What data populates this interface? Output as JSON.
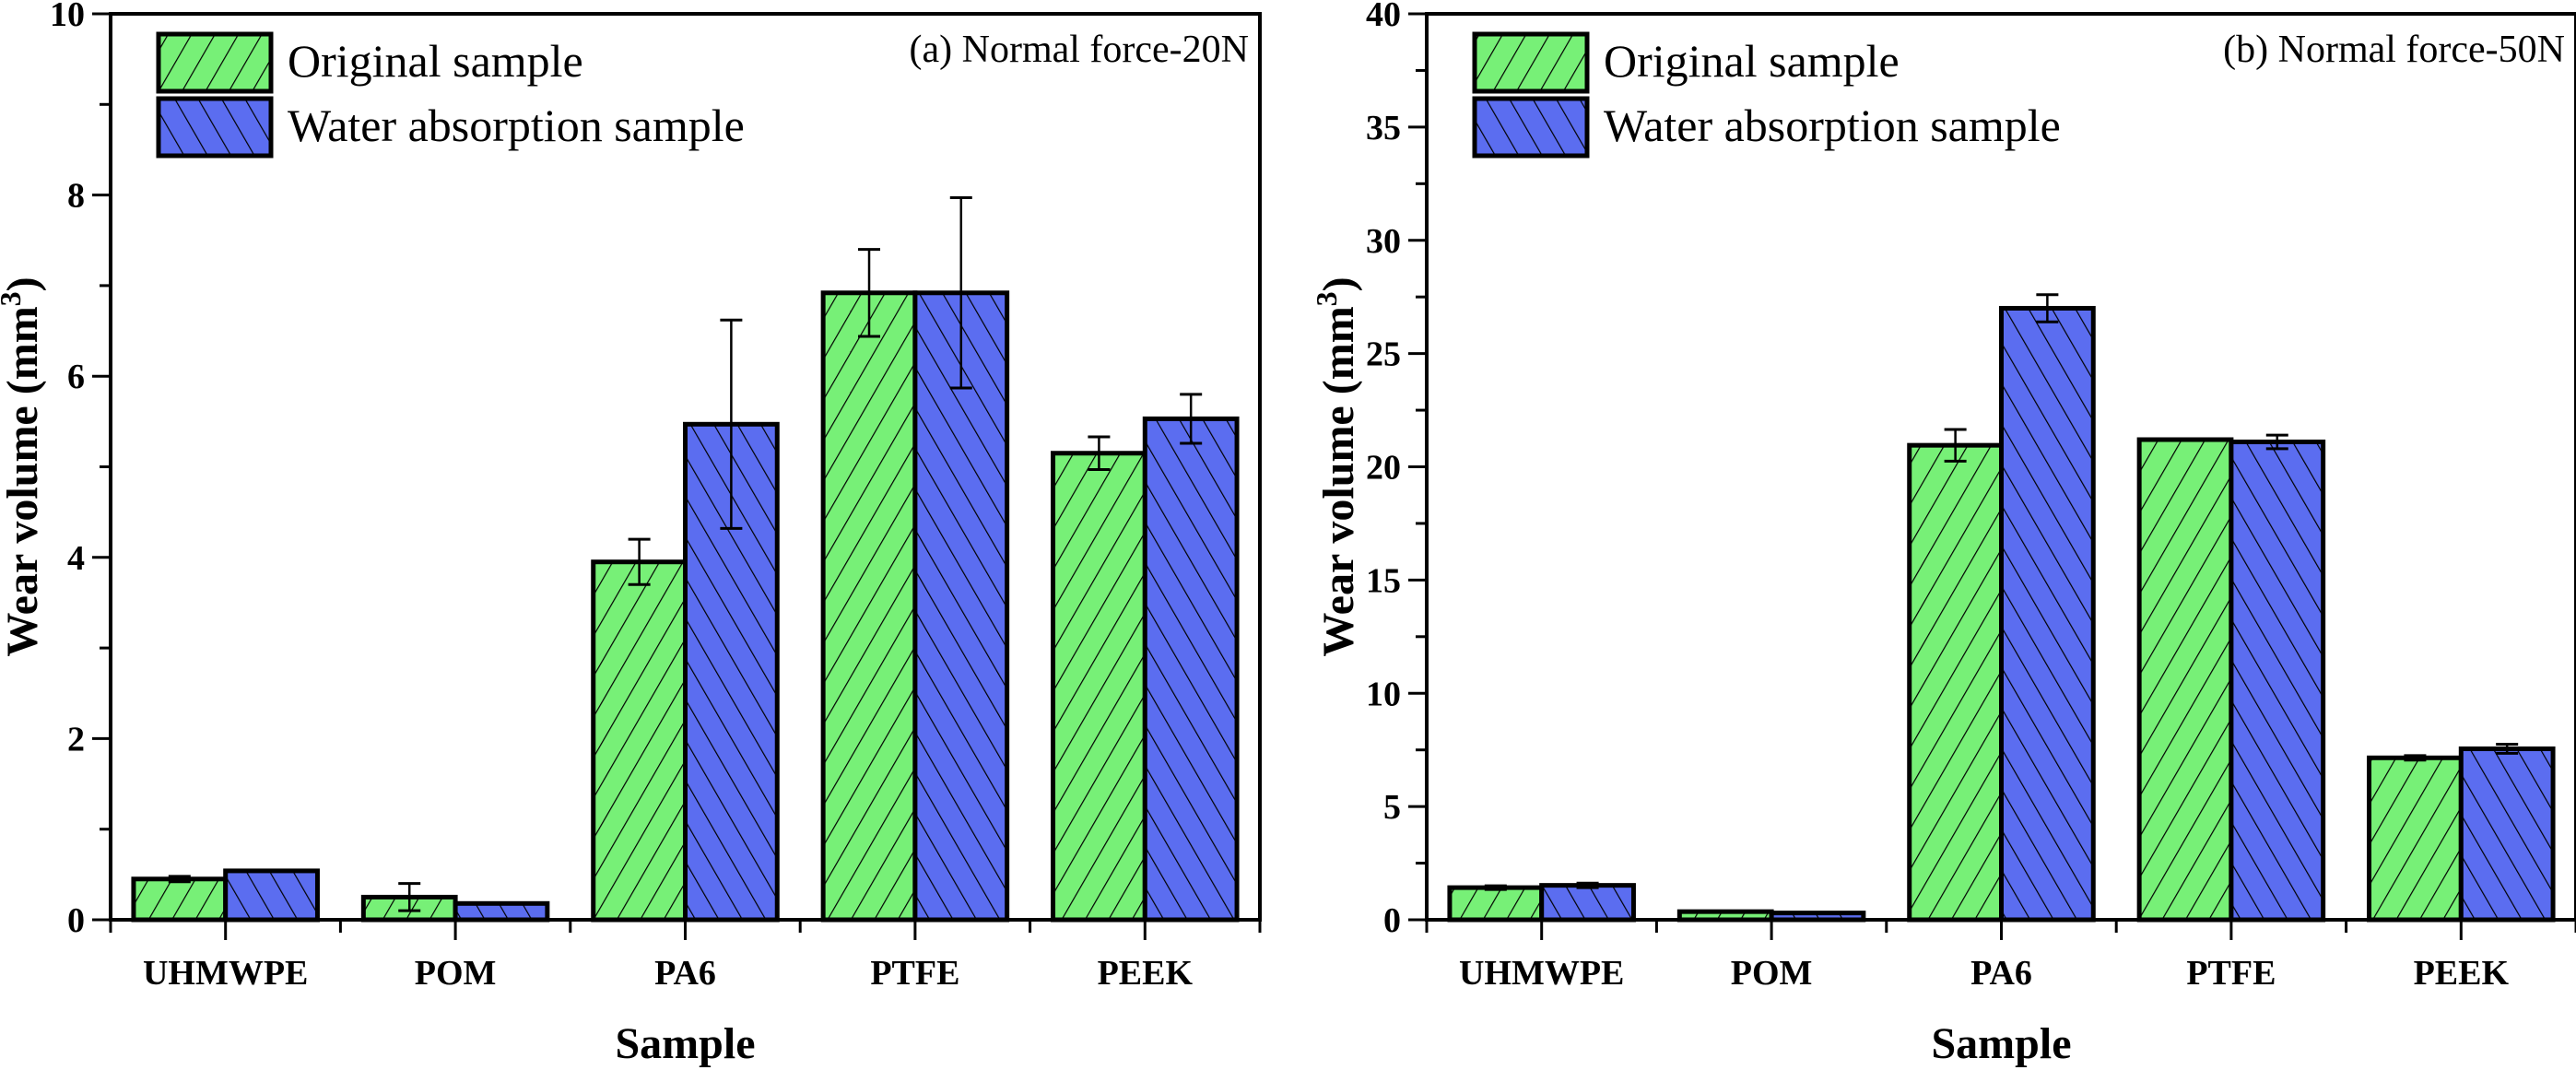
{
  "chart_data": [
    {
      "type": "bar",
      "panel": "a",
      "annotation": "(a) Normal force-20N",
      "xlabel": "Sample",
      "ylabel": "Wear volume (mm",
      "ylabel_sup": "3",
      "ylabel_close": ")",
      "ylim": [
        0,
        10
      ],
      "yticks": [
        0,
        2,
        4,
        6,
        8,
        10
      ],
      "yminor_step": 1,
      "categories": [
        "UHMWPE",
        "POM",
        "PA6",
        "PTFE",
        "PEEK"
      ],
      "series": [
        {
          "name": "Original sample",
          "color": "#77f077",
          "hatch": "forward",
          "values": [
            0.45,
            0.25,
            3.95,
            6.92,
            5.15
          ],
          "errors": [
            0.03,
            0.15,
            0.25,
            0.48,
            0.18
          ]
        },
        {
          "name": "Water absorption sample",
          "color": "#5b6df0",
          "hatch": "back",
          "values": [
            0.54,
            0.18,
            5.47,
            6.92,
            5.53
          ],
          "errors": [
            0.0,
            0.0,
            1.15,
            1.05,
            0.27
          ]
        }
      ],
      "legend_position": "top-left",
      "grid": false
    },
    {
      "type": "bar",
      "panel": "b",
      "annotation": "(b) Normal force-50N",
      "xlabel": "Sample",
      "ylabel": "Wear volume (mm",
      "ylabel_sup": "3",
      "ylabel_close": ")",
      "ylim": [
        0,
        40
      ],
      "yticks": [
        0,
        5,
        10,
        15,
        20,
        25,
        30,
        35,
        40
      ],
      "yminor_step": 2.5,
      "categories": [
        "UHMWPE",
        "POM",
        "PA6",
        "PTFE",
        "PEEK"
      ],
      "series": [
        {
          "name": "Original sample",
          "color": "#77f077",
          "hatch": "forward",
          "values": [
            1.42,
            0.36,
            20.95,
            21.2,
            7.15
          ],
          "errors": [
            0.08,
            0.0,
            0.7,
            0.0,
            0.1
          ]
        },
        {
          "name": "Water absorption sample",
          "color": "#5b6df0",
          "hatch": "back",
          "values": [
            1.52,
            0.3,
            27.0,
            21.1,
            7.55
          ],
          "errors": [
            0.1,
            0.0,
            0.6,
            0.3,
            0.2
          ]
        }
      ],
      "legend_position": "top-left",
      "grid": false
    }
  ]
}
